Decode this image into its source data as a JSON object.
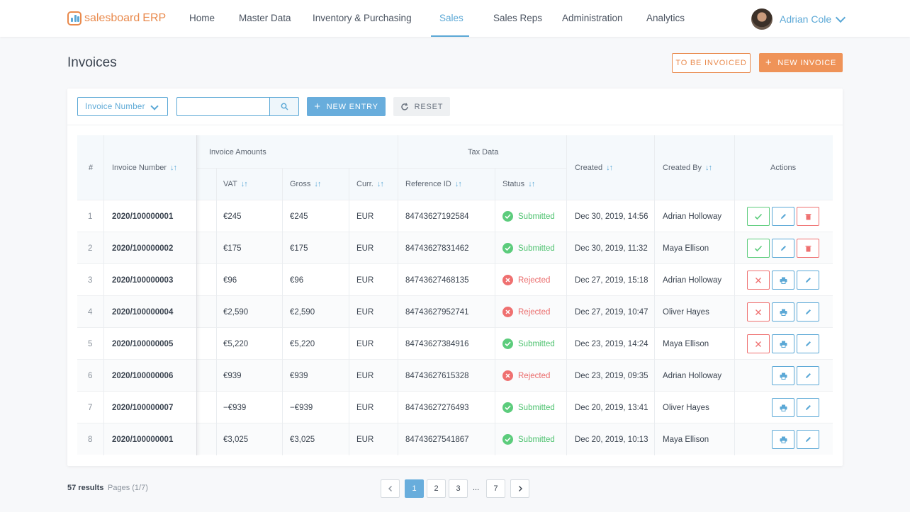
{
  "app": {
    "logo_primary": "salesboard",
    "logo_secondary": "ERP",
    "nav": [
      {
        "label": "Home",
        "active": false
      },
      {
        "label": "Master Data",
        "active": false
      },
      {
        "label": "Inventory & Purchasing",
        "active": false
      },
      {
        "label": "Sales",
        "active": true
      },
      {
        "label": "Sales Reps",
        "active": false
      },
      {
        "label": "Administration",
        "active": false
      },
      {
        "label": "Analytics",
        "active": false
      }
    ],
    "user": {
      "name": "Adrian Cole"
    }
  },
  "page": {
    "title": "Invoices",
    "to_be_invoiced_label": "TO BE INVOICED",
    "new_invoice_label": "NEW INVOICE",
    "plus": "+"
  },
  "toolbar": {
    "filter_select_value": "Invoice Number",
    "search_value": "",
    "new_entry_label": "NEW ENTRY",
    "reset_label": "RESET"
  },
  "table": {
    "headers": {
      "index": "#",
      "invoice_number": "Invoice Number",
      "invoice_amounts": "Invoice Amounts",
      "vat": "VAT",
      "gross": "Gross",
      "curr": "Curr.",
      "tax_data": "Tax Data",
      "reference_id": "Reference ID",
      "status": "Status",
      "created": "Created",
      "created_by": "Created By",
      "actions": "Actions",
      "sort_glyph": "↓↑"
    },
    "rows": [
      {
        "index": "1",
        "invoice_number": "2020/100000001",
        "vat": "€245",
        "gross": "€245",
        "curr": "EUR",
        "reference_id": "84743627192584",
        "status": "Submitted",
        "created": "Dec 30, 2019, 14:56",
        "created_by": "Adrian Holloway",
        "actions": [
          "approve",
          "edit",
          "delete"
        ]
      },
      {
        "index": "2",
        "invoice_number": "2020/100000002",
        "vat": "€175",
        "gross": "€175",
        "curr": "EUR",
        "reference_id": "84743627831462",
        "status": "Submitted",
        "created": "Dec 30, 2019, 11:32",
        "created_by": "Maya Ellison",
        "actions": [
          "approve",
          "edit",
          "delete"
        ]
      },
      {
        "index": "3",
        "invoice_number": "2020/100000003",
        "vat": "€96",
        "gross": "€96",
        "curr": "EUR",
        "reference_id": "84743627468135",
        "status": "Rejected",
        "created": "Dec 27, 2019, 15:18",
        "created_by": "Adrian Holloway",
        "actions": [
          "cancel",
          "print",
          "edit"
        ]
      },
      {
        "index": "4",
        "invoice_number": "2020/100000004",
        "vat": "€2,590",
        "gross": "€2,590",
        "curr": "EUR",
        "reference_id": "84743627952741",
        "status": "Rejected",
        "created": "Dec 27, 2019, 10:47",
        "created_by": "Oliver Hayes",
        "actions": [
          "cancel",
          "print",
          "edit"
        ]
      },
      {
        "index": "5",
        "invoice_number": "2020/100000005",
        "vat": "€5,220",
        "gross": "€5,220",
        "curr": "EUR",
        "reference_id": "84743627384916",
        "status": "Submitted",
        "created": "Dec 23, 2019, 14:24",
        "created_by": "Maya Ellison",
        "actions": [
          "cancel",
          "print",
          "edit"
        ]
      },
      {
        "index": "6",
        "invoice_number": "2020/100000006",
        "vat": "€939",
        "gross": "€939",
        "curr": "EUR",
        "reference_id": "84743627615328",
        "status": "Rejected",
        "created": "Dec 23, 2019, 09:35",
        "created_by": "Adrian Holloway",
        "actions": [
          "print",
          "edit"
        ]
      },
      {
        "index": "7",
        "invoice_number": "2020/100000007",
        "vat": "−€939",
        "gross": "−€939",
        "curr": "EUR",
        "reference_id": "84743627276493",
        "status": "Submitted",
        "created": "Dec 20, 2019, 13:41",
        "created_by": "Oliver Hayes",
        "actions": [
          "print",
          "edit"
        ]
      },
      {
        "index": "8",
        "invoice_number": "2020/100000001",
        "vat": "€3,025",
        "gross": "€3,025",
        "curr": "EUR",
        "reference_id": "84743627541867",
        "status": "Submitted",
        "created": "Dec 20, 2019, 10:13",
        "created_by": "Maya Ellison",
        "actions": [
          "print",
          "edit"
        ]
      }
    ]
  },
  "footer": {
    "results": "57 results",
    "pages_info": "Pages (1/7)",
    "pages": [
      "1",
      "2",
      "3",
      "7"
    ],
    "active_page": "1",
    "ellipsis": "..."
  },
  "colors": {
    "accent": "#5ba8d6",
    "brand_orange": "#e98a4d",
    "success": "#5ccc7c",
    "danger": "#ef7070"
  }
}
